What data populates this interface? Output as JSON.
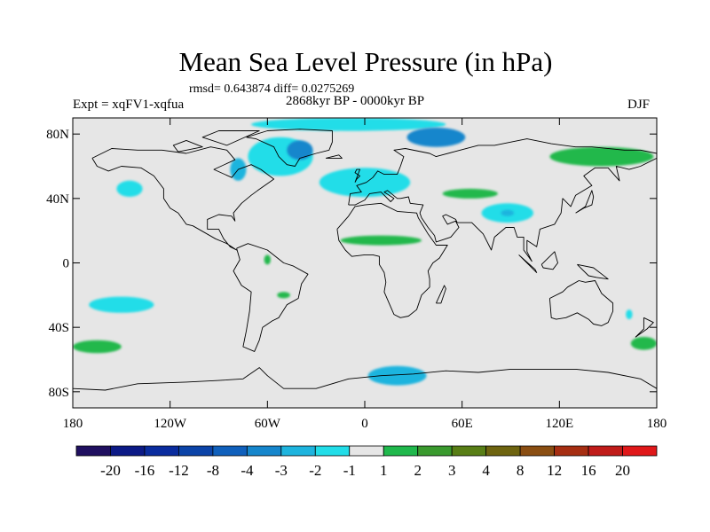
{
  "figure": {
    "title": "Mean Sea Level Pressure (in hPa)",
    "stats_line": "rmsd= 0.643874 diff= 0.0275269",
    "experiment_label": "Expt = xqFV1-xqfua",
    "period_label": "2868kyr BP - 0000kyr BP",
    "season_label": "DJF"
  },
  "chart_data": {
    "type": "heatmap",
    "subtype": "filled-contour-map",
    "title": "Mean Sea Level Pressure (in hPa)",
    "units": "hPa",
    "projection": "cylindrical-equidistant",
    "lon_range": [
      -180,
      180
    ],
    "lat_range": [
      -90,
      90
    ],
    "x_ticks": [
      {
        "value": -180,
        "label": "180"
      },
      {
        "value": -120,
        "label": "120W"
      },
      {
        "value": -60,
        "label": "60W"
      },
      {
        "value": 0,
        "label": "0"
      },
      {
        "value": 60,
        "label": "60E"
      },
      {
        "value": 120,
        "label": "120E"
      },
      {
        "value": 180,
        "label": "180"
      }
    ],
    "y_ticks": [
      {
        "value": 80,
        "label": "80N"
      },
      {
        "value": 40,
        "label": "40N"
      },
      {
        "value": 0,
        "label": "0"
      },
      {
        "value": -40,
        "label": "40S"
      },
      {
        "value": -80,
        "label": "80S"
      }
    ],
    "colorbar": {
      "levels": [
        "-20",
        "-16",
        "-12",
        "-8",
        "-4",
        "-3",
        "-2",
        "-1",
        "1",
        "2",
        "3",
        "4",
        "8",
        "12",
        "16",
        "20"
      ],
      "colors": [
        "#201060",
        "#0c1a86",
        "#0a2c9e",
        "#0c44a8",
        "#1060bc",
        "#1686cc",
        "#1eb4de",
        "#22dde8",
        "#e6e6e6",
        "#20b84c",
        "#3a9a2e",
        "#587e16",
        "#6e6410",
        "#8a4e12",
        "#a62e12",
        "#c01c1a",
        "#e0181a"
      ]
    },
    "anomalies": [
      {
        "region": "Arctic ocean",
        "lon": -10,
        "lat": 86,
        "rx": 60,
        "ry": 4,
        "category": "-2 to -1"
      },
      {
        "region": "Greenland / Labrador Sea",
        "lon": -52,
        "lat": 66,
        "rx": 20,
        "ry": 12,
        "category": "-2 to -1"
      },
      {
        "region": "Greenland",
        "lon": -40,
        "lat": 70,
        "rx": 8,
        "ry": 6,
        "category": "-4 to -3"
      },
      {
        "region": "Hudson Bay",
        "lon": -78,
        "lat": 58,
        "rx": 5,
        "ry": 7,
        "category": "-3 to -2"
      },
      {
        "region": "Barents Sea",
        "lon": 44,
        "lat": 78,
        "rx": 18,
        "ry": 6,
        "category": "-4 to -3"
      },
      {
        "region": "North Atlantic",
        "lon": 0,
        "lat": 50,
        "rx": 28,
        "ry": 9,
        "category": "-2 to -1"
      },
      {
        "region": "North Pacific",
        "lon": -145,
        "lat": 46,
        "rx": 8,
        "ry": 5,
        "category": "-2 to -1"
      },
      {
        "region": "Tibetan Plateau",
        "lon": 88,
        "lat": 31,
        "rx": 16,
        "ry": 6,
        "category": "-2 to -1"
      },
      {
        "region": "Tibet core",
        "lon": 88,
        "lat": 31,
        "rx": 4,
        "ry": 2,
        "category": "-3 to -2"
      },
      {
        "region": "South Pacific",
        "lon": -150,
        "lat": -26,
        "rx": 20,
        "ry": 5,
        "category": "-2 to -1"
      },
      {
        "region": "Antarctic coast",
        "lon": 20,
        "lat": -70,
        "rx": 18,
        "ry": 6,
        "category": "-3 to -2"
      },
      {
        "region": "Tasman Sea",
        "lon": 163,
        "lat": -32,
        "rx": 2,
        "ry": 3,
        "category": "-2 to -1"
      },
      {
        "region": "Siberia",
        "lon": 146,
        "lat": 66,
        "rx": 32,
        "ry": 6,
        "category": "1 to 2"
      },
      {
        "region": "Central Asia",
        "lon": 65,
        "lat": 43,
        "rx": 17,
        "ry": 3,
        "category": "1 to 2"
      },
      {
        "region": "Sahel",
        "lon": 10,
        "lat": 14,
        "rx": 25,
        "ry": 3,
        "category": "1 to 2"
      },
      {
        "region": "Amazon",
        "lon": -60,
        "lat": 2,
        "rx": 2,
        "ry": 3,
        "category": "1 to 2"
      },
      {
        "region": "South America",
        "lon": -50,
        "lat": -20,
        "rx": 4,
        "ry": 2,
        "category": "1 to 2"
      },
      {
        "region": "Southern Ocean Pacific",
        "lon": -165,
        "lat": -52,
        "rx": 15,
        "ry": 4,
        "category": "1 to 2"
      },
      {
        "region": "Southern Ocean Indian",
        "lon": 172,
        "lat": -50,
        "rx": 8,
        "ry": 4,
        "category": "1 to 2"
      }
    ]
  }
}
